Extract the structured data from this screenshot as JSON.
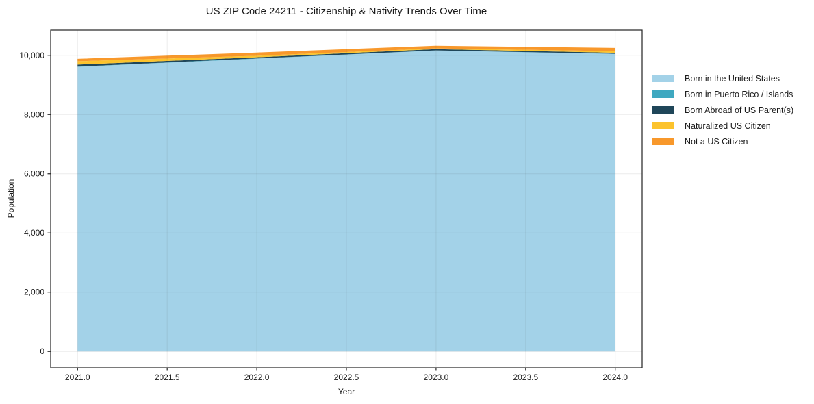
{
  "text_color": "#1a1a1a",
  "background_color": "#ffffff",
  "chart_data": {
    "type": "area",
    "stacked": true,
    "title": "US ZIP Code 24211 - Citizenship & Nativity Trends Over Time",
    "xlabel": "Year",
    "ylabel": "Population",
    "x": [
      2021,
      2022,
      2023,
      2024
    ],
    "series": [
      {
        "id": "born-us",
        "name": "Born in the United States",
        "color": "#A3D2E8",
        "values": [
          9610,
          9885,
          10160,
          10045
        ]
      },
      {
        "id": "puerto-rico-islands",
        "name": "Born in Puerto Rico / Islands",
        "color": "#3FA8C0",
        "values": [
          10,
          10,
          5,
          5
        ]
      },
      {
        "id": "born-abroad",
        "name": "Born Abroad of US Parent(s)",
        "color": "#1F4659",
        "values": [
          65,
          40,
          45,
          35
        ]
      },
      {
        "id": "naturalized",
        "name": "Naturalized US Citizen",
        "color": "#FCC32D",
        "values": [
          115,
          50,
          25,
          55
        ]
      },
      {
        "id": "not-citizen",
        "name": "Not a US Citizen",
        "color": "#F8982B",
        "values": [
          80,
          110,
          90,
          110
        ]
      }
    ],
    "totals": [
      9880,
      10095,
      10325,
      10250
    ],
    "x_ticks": [
      2021.0,
      2021.5,
      2022.0,
      2022.5,
      2023.0,
      2023.5,
      2024.0
    ],
    "x_tick_labels": [
      "2021.0",
      "2021.5",
      "2022.0",
      "2022.5",
      "2023.0",
      "2023.5",
      "2024.0"
    ],
    "y_ticks": [
      0,
      2000,
      4000,
      6000,
      8000,
      10000
    ],
    "y_tick_labels": [
      "0",
      "2,000",
      "4,000",
      "6,000",
      "8,000",
      "10,000"
    ],
    "xlim": [
      2020.85,
      2024.15
    ],
    "ylim": [
      -550,
      10850
    ],
    "grid": true,
    "legend_position": "right"
  }
}
